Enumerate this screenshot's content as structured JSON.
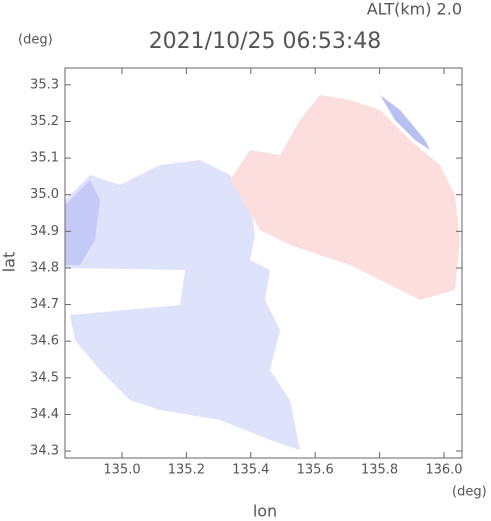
{
  "chart_data": {
    "type": "map",
    "title": "2021/10/25 06:53:48",
    "subtitle": "ALT(km) 2.0",
    "x_label": "lon",
    "y_label": "lat",
    "x_unit": "(deg)",
    "y_unit": "(deg)",
    "xlim": [
      134.823,
      136.056
    ],
    "ylim": [
      34.281,
      35.346
    ],
    "xticks": [
      {
        "value": 135.0,
        "label": "135.0"
      },
      135.2,
      135.4,
      135.6,
      135.8,
      {
        "value": 136.0,
        "label": "136.0"
      }
    ],
    "yticks": [
      34.3,
      34.4,
      34.5,
      34.6,
      34.7,
      34.8,
      34.9,
      {
        "value": 35.0,
        "label": "35.0"
      },
      35.1,
      35.2,
      35.3
    ]
  }
}
